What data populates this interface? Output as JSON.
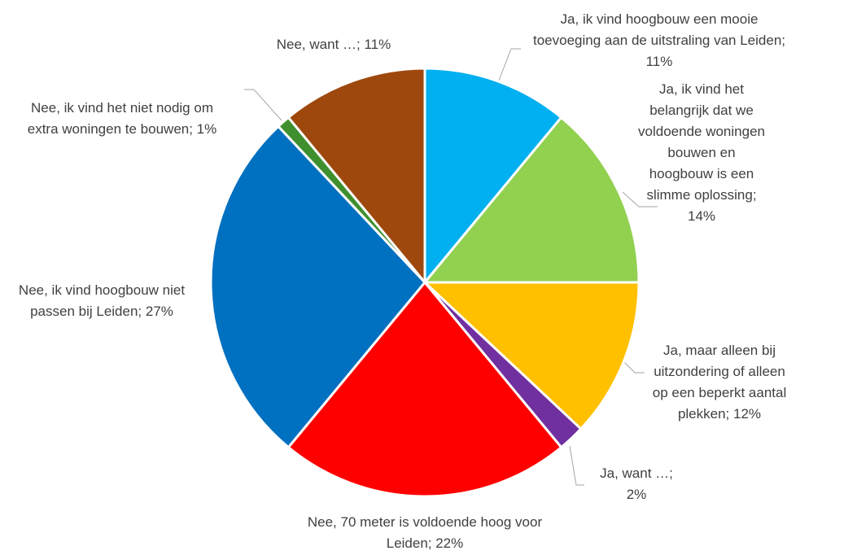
{
  "chart_data": {
    "type": "pie",
    "categories": [
      "Ja, ik vind hoogbouw een mooie toevoeging aan de uitstraling van Leiden; 11%",
      "Ja, ik vind het belangrijk dat we voldoende woningen bouwen en hoogbouw is een slimme oplossing; 14%",
      "Ja, maar alleen bij uitzondering of alleen op een beperkt aantal plekken; 12%",
      "Ja, want …; 2%",
      "Nee, 70 meter is voldoende hoog voor Leiden; 22%",
      "Nee, ik vind hoogbouw niet passen bij Leiden; 27%",
      "Nee, ik vind het niet nodig om extra woningen te bouwen; 1%",
      "Nee, want …; 11%"
    ],
    "values": [
      11,
      14,
      12,
      2,
      22,
      27,
      1,
      11
    ],
    "colors": [
      "#00b0f0",
      "#92d050",
      "#ffc000",
      "#7030a0",
      "#ff0000",
      "#0070c0",
      "#3f8f2f",
      "#9e480e"
    ]
  }
}
